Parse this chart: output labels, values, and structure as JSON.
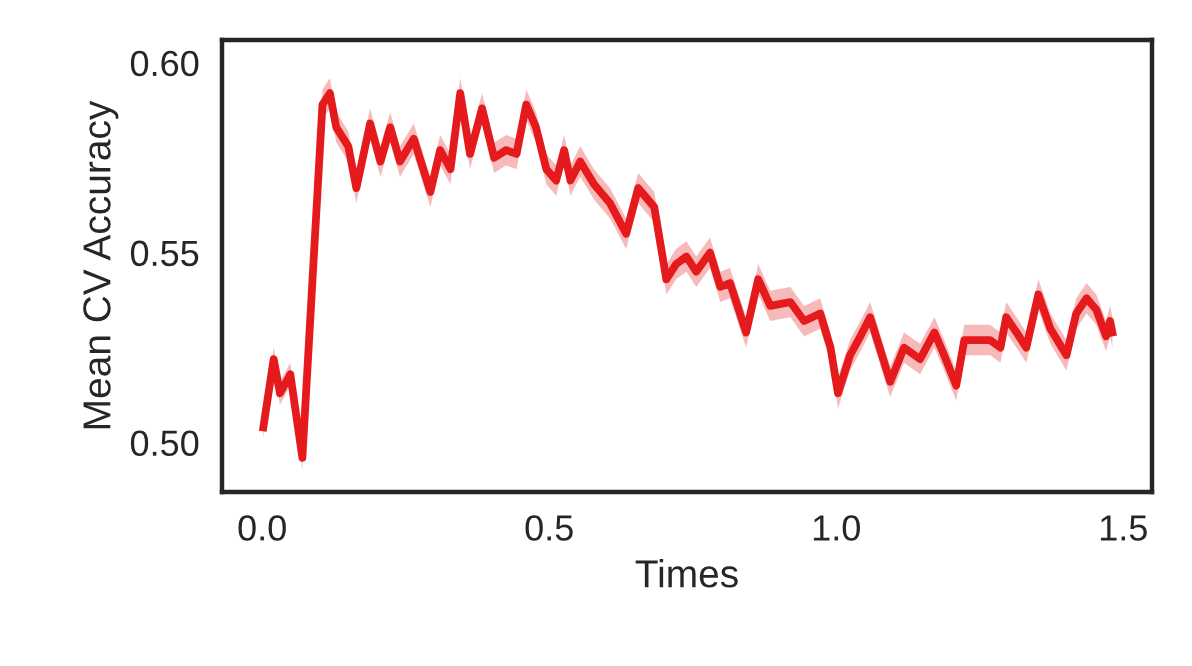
{
  "chart_data": {
    "type": "line",
    "xlabel": "Times",
    "ylabel": "Mean CV Accuracy",
    "xlim": [
      -0.07,
      1.55
    ],
    "xticks": [
      {
        "value": 0,
        "label": "0.0"
      },
      0.5,
      {
        "value": 1,
        "label": "1.0"
      },
      1.5
    ],
    "ylim": [
      0.487,
      0.606
    ],
    "yticks": [
      {
        "value": 0.5,
        "label": "0.50"
      },
      0.55,
      {
        "value": 0.6,
        "label": "0.60"
      }
    ],
    "grid": false,
    "legend": false,
    "series": [
      {
        "color": "#e41a1c",
        "x": [
          0.002,
          0.02,
          0.031,
          0.049,
          0.07,
          0.105,
          0.118,
          0.129,
          0.15,
          0.164,
          0.188,
          0.206,
          0.223,
          0.24,
          0.264,
          0.293,
          0.31,
          0.328,
          0.345,
          0.362,
          0.383,
          0.404,
          0.425,
          0.443,
          0.46,
          0.477,
          0.495,
          0.512,
          0.526,
          0.537,
          0.554,
          0.578,
          0.606,
          0.634,
          0.655,
          0.683,
          0.704,
          0.721,
          0.739,
          0.756,
          0.78,
          0.798,
          0.815,
          0.843,
          0.864,
          0.885,
          0.92,
          0.944,
          0.972,
          0.99,
          1.003,
          1.024,
          1.042,
          1.059,
          1.094,
          1.118,
          1.146,
          1.171,
          1.188,
          1.209,
          1.223,
          1.244,
          1.268,
          1.286,
          1.296,
          1.314,
          1.331,
          1.352,
          1.373,
          1.401,
          1.418,
          1.436,
          1.453,
          1.47,
          1.477,
          1.481
        ],
        "values": [
          0.504,
          0.522,
          0.513,
          0.518,
          0.496,
          0.589,
          0.592,
          0.583,
          0.578,
          0.567,
          0.584,
          0.574,
          0.583,
          0.574,
          0.58,
          0.566,
          0.577,
          0.572,
          0.592,
          0.576,
          0.588,
          0.575,
          0.577,
          0.576,
          0.589,
          0.583,
          0.572,
          0.569,
          0.577,
          0.569,
          0.574,
          0.568,
          0.563,
          0.555,
          0.567,
          0.562,
          0.543,
          0.547,
          0.549,
          0.545,
          0.55,
          0.541,
          0.542,
          0.529,
          0.543,
          0.536,
          0.537,
          0.532,
          0.534,
          0.525,
          0.513,
          0.523,
          0.528,
          0.533,
          0.516,
          0.525,
          0.522,
          0.529,
          0.523,
          0.515,
          0.527,
          0.527,
          0.527,
          0.525,
          0.533,
          0.529,
          0.525,
          0.539,
          0.53,
          0.523,
          0.534,
          0.538,
          0.535,
          0.528,
          0.532,
          0.529
        ],
        "lower": [
          0.501,
          0.519,
          0.51,
          0.515,
          0.493,
          0.585,
          0.588,
          0.579,
          0.574,
          0.563,
          0.58,
          0.57,
          0.579,
          0.57,
          0.576,
          0.562,
          0.573,
          0.568,
          0.588,
          0.572,
          0.584,
          0.571,
          0.573,
          0.572,
          0.585,
          0.579,
          0.568,
          0.565,
          0.573,
          0.565,
          0.57,
          0.564,
          0.559,
          0.551,
          0.563,
          0.558,
          0.539,
          0.543,
          0.545,
          0.541,
          0.546,
          0.537,
          0.538,
          0.525,
          0.539,
          0.532,
          0.533,
          0.528,
          0.53,
          0.521,
          0.509,
          0.519,
          0.524,
          0.529,
          0.512,
          0.521,
          0.518,
          0.525,
          0.519,
          0.511,
          0.523,
          0.523,
          0.523,
          0.521,
          0.529,
          0.525,
          0.521,
          0.535,
          0.526,
          0.519,
          0.53,
          0.534,
          0.531,
          0.524,
          0.528,
          0.525
        ],
        "upper": [
          0.507,
          0.525,
          0.516,
          0.521,
          0.499,
          0.593,
          0.596,
          0.587,
          0.582,
          0.571,
          0.588,
          0.578,
          0.587,
          0.578,
          0.584,
          0.57,
          0.581,
          0.576,
          0.596,
          0.58,
          0.592,
          0.579,
          0.581,
          0.58,
          0.593,
          0.587,
          0.576,
          0.573,
          0.581,
          0.573,
          0.578,
          0.572,
          0.567,
          0.559,
          0.571,
          0.566,
          0.547,
          0.551,
          0.553,
          0.549,
          0.554,
          0.545,
          0.546,
          0.533,
          0.547,
          0.54,
          0.541,
          0.536,
          0.538,
          0.529,
          0.517,
          0.527,
          0.532,
          0.537,
          0.52,
          0.529,
          0.526,
          0.533,
          0.527,
          0.519,
          0.531,
          0.531,
          0.531,
          0.529,
          0.537,
          0.533,
          0.529,
          0.543,
          0.534,
          0.527,
          0.538,
          0.542,
          0.539,
          0.532,
          0.536,
          0.533
        ]
      }
    ]
  }
}
